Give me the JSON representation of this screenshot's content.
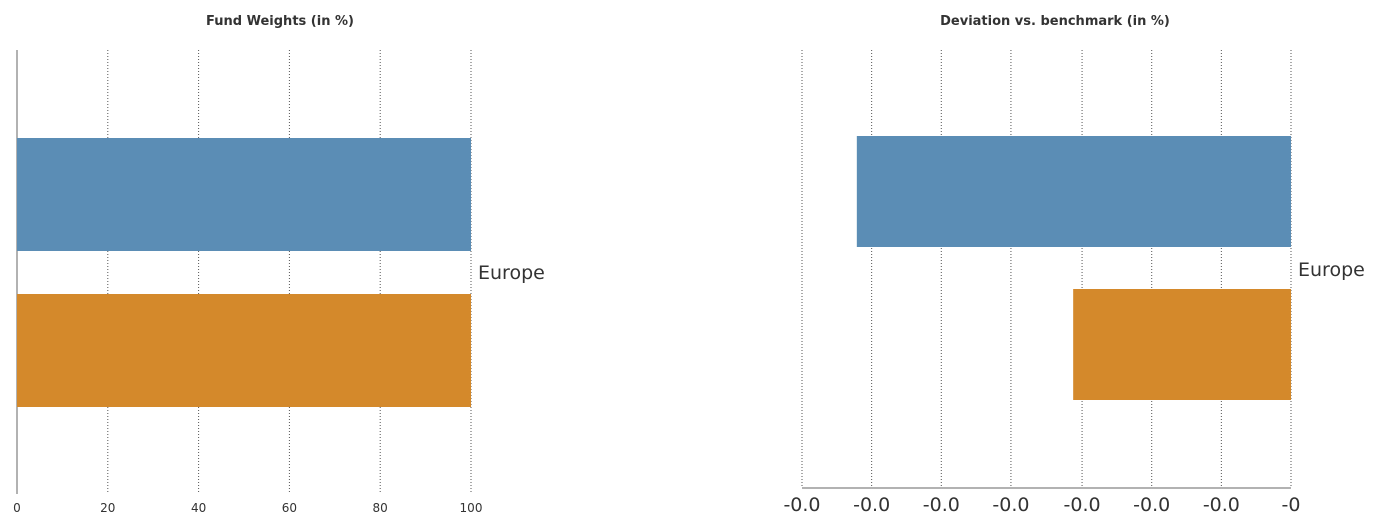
{
  "chart_data": [
    {
      "type": "bar",
      "orientation": "horizontal",
      "title": "Fund Weights (in %)",
      "categories": [
        "Europe"
      ],
      "series": [
        {
          "values": [
            100
          ],
          "color": "#5b8db5"
        },
        {
          "values": [
            100
          ],
          "color": "#d4892b"
        }
      ],
      "xlim": [
        0,
        100
      ],
      "xticks": [
        0,
        20,
        40,
        60,
        80,
        100
      ],
      "xtick_labels": [
        "0",
        "20",
        "40",
        "60",
        "80",
        "100"
      ],
      "grid": true
    },
    {
      "type": "bar",
      "orientation": "horizontal",
      "title": "Deviation vs. benchmark (in %)",
      "categories": [
        "Europe"
      ],
      "series": [
        {
          "values": [
            -0.0293
          ],
          "color": "#5b8db5"
        },
        {
          "values": [
            -0.0147
          ],
          "color": "#d4892b"
        }
      ],
      "xlim": [
        -0.033,
        0
      ],
      "xticks": [
        -0.033,
        -0.0283,
        -0.0236,
        -0.0189,
        -0.0141,
        -0.0094,
        -0.0047,
        0
      ],
      "xtick_labels": [
        "-0.0",
        "-0.0",
        "-0.0",
        "-0.0",
        "-0.0",
        "-0.0",
        "-0.0",
        "-0"
      ],
      "grid": true
    }
  ]
}
